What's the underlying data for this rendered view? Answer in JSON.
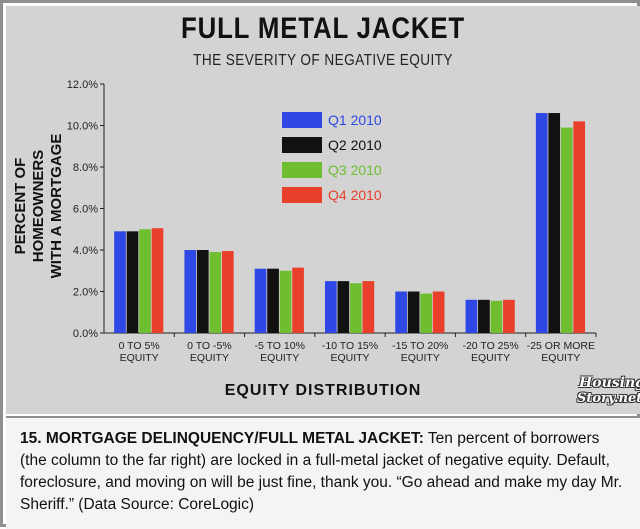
{
  "chart_data": {
    "type": "bar",
    "title": "FULL METAL JACKET",
    "subtitle": "THE SEVERITY OF NEGATIVE EQUITY",
    "ylabel": "PERCENT OF HOMEOWNERS WITH A MORTGAGE",
    "ylabel_lines": [
      "PERCENT OF HOMEOWNERS",
      "WITH A MORTGAGE"
    ],
    "xlabel": "EQUITY DISTRIBUTION",
    "categories": [
      [
        "0 TO 5%",
        "EQUITY"
      ],
      [
        "0 TO -5%",
        "EQUITY"
      ],
      [
        "-5 TO 10%",
        "EQUITY"
      ],
      [
        "-10 TO 15%",
        "EQUITY"
      ],
      [
        "-15 TO 20%",
        "EQUITY"
      ],
      [
        "-20 TO 25%",
        "EQUITY"
      ],
      [
        "-25 OR MORE",
        "EQUITY"
      ]
    ],
    "ylim": [
      0,
      12
    ],
    "yticks": [
      "0.0%",
      "2.0%",
      "4.0%",
      "6.0%",
      "8.0%",
      "10.0%",
      "12.0%"
    ],
    "grid": false,
    "legend_position": "top-center",
    "series": [
      {
        "name": "Q1 2010",
        "color": "#2f47e4",
        "values": [
          4.9,
          4.0,
          3.1,
          2.5,
          2.0,
          1.6,
          10.6
        ]
      },
      {
        "name": "Q2 2010",
        "color": "#111111",
        "values": [
          4.9,
          4.0,
          3.1,
          2.5,
          2.0,
          1.6,
          10.6
        ]
      },
      {
        "name": "Q3 2010",
        "color": "#6ebe2f",
        "values": [
          5.0,
          3.9,
          3.0,
          2.4,
          1.9,
          1.55,
          9.9
        ]
      },
      {
        "name": "Q4 2010",
        "color": "#e8402a",
        "values": [
          5.05,
          3.95,
          3.15,
          2.5,
          2.0,
          1.6,
          10.2
        ]
      }
    ],
    "legend_text_colors": [
      "#2f47e4",
      "#111111",
      "#6ebe2f",
      "#e8402a"
    ]
  },
  "caption": {
    "lead": "15. MORTGAGE DELINQUENCY/FULL METAL JACKET:",
    "body": " Ten percent of borrowers (the column to the far right) are locked in a full-metal jacket of negative equity. Default, foreclosure, and moving on will be just fine, thank you. “Go ahead and make my day Mr. Sheriff.” (Data Source: CoreLogic)"
  },
  "logo": {
    "line1": "Housing",
    "line2": "Story.net"
  },
  "colors": {
    "panel": "#d3d3d3",
    "caption_bg": "#f4f4f4",
    "frame": "#8e8e8e"
  }
}
